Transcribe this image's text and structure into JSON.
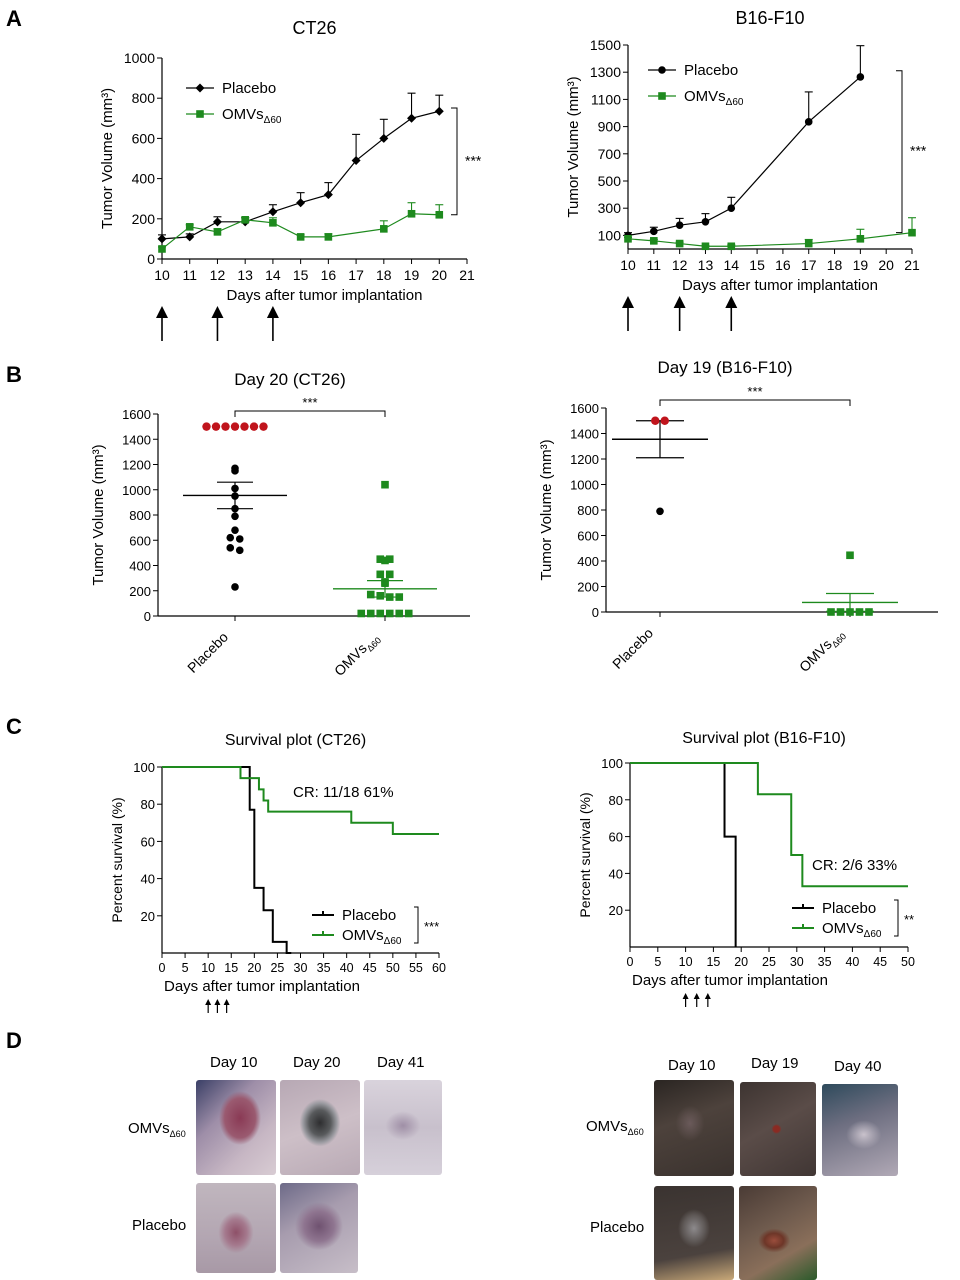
{
  "panel_letters": {
    "a": "A",
    "b": "B",
    "c": "C",
    "d": "D"
  },
  "colors": {
    "placebo": "#000000",
    "omvs": "#1e8a1e",
    "placebo_capped": "#c0141c"
  },
  "chart_data": [
    {
      "id": "A1",
      "type": "line",
      "title": "CT26",
      "xlabel": "Days after tumor implantation",
      "ylabel": "Tumor Volume (mm³)",
      "xlim": [
        10,
        21
      ],
      "ylim": [
        0,
        1000
      ],
      "xticks": [
        10,
        11,
        12,
        13,
        14,
        15,
        16,
        17,
        18,
        19,
        20,
        21
      ],
      "yticks": [
        0,
        200,
        400,
        600,
        800,
        1000
      ],
      "series": [
        {
          "name": "Placebo",
          "marker": "diamond",
          "x": [
            10,
            11,
            12,
            13,
            14,
            15,
            16,
            17,
            18,
            19,
            20
          ],
          "y": [
            100,
            110,
            185,
            185,
            235,
            280,
            320,
            490,
            600,
            700,
            735
          ],
          "err": [
            20,
            15,
            25,
            20,
            35,
            50,
            60,
            130,
            95,
            125,
            80
          ]
        },
        {
          "name": "OMVs",
          "name_subscript": "Δ60",
          "marker": "square",
          "x": [
            10,
            11,
            12,
            13,
            14,
            15,
            16,
            18,
            19,
            20
          ],
          "y": [
            50,
            160,
            135,
            195,
            180,
            110,
            110,
            150,
            225,
            220
          ],
          "err": [
            10,
            10,
            15,
            10,
            25,
            10,
            15,
            40,
            55,
            50
          ]
        }
      ],
      "significance": "***",
      "dosing_days": [
        10,
        12,
        14
      ]
    },
    {
      "id": "A2",
      "type": "line",
      "title": "B16-F10",
      "xlabel": "Days after tumor implantation",
      "ylabel": "Tumor Volume (mm³)",
      "xlim": [
        10,
        21
      ],
      "ylim": [
        0,
        1500
      ],
      "xticks": [
        10,
        11,
        12,
        13,
        14,
        15,
        16,
        17,
        18,
        19,
        20,
        21
      ],
      "yticks": [
        100,
        300,
        500,
        700,
        900,
        1100,
        1300,
        1500
      ],
      "series": [
        {
          "name": "Placebo",
          "marker": "circle",
          "x": [
            10,
            11,
            12,
            13,
            14,
            17,
            19
          ],
          "y": [
            100,
            130,
            175,
            200,
            300,
            935,
            1265
          ],
          "err": [
            20,
            30,
            50,
            60,
            80,
            220,
            230
          ]
        },
        {
          "name": "OMVs",
          "name_subscript": "Δ60",
          "marker": "square",
          "x": [
            10,
            11,
            12,
            13,
            14,
            17,
            19,
            21
          ],
          "y": [
            75,
            60,
            40,
            20,
            20,
            40,
            75,
            120
          ],
          "err": [
            10,
            10,
            10,
            5,
            10,
            30,
            70,
            110
          ]
        }
      ],
      "significance": "***",
      "dosing_days": [
        10,
        12,
        14
      ]
    },
    {
      "id": "B1",
      "type": "scatter",
      "title": "Day 20 (CT26)",
      "ylabel": "Tumor Volume (mm³)",
      "categories": [
        "Placebo",
        "OMVs"
      ],
      "category_subscripts": [
        "",
        "Δ60"
      ],
      "ylim": [
        0,
        1600
      ],
      "yticks": [
        0,
        200,
        400,
        600,
        800,
        1000,
        1200,
        1400,
        1600
      ],
      "groups": [
        {
          "name": "Placebo",
          "marker": "circle",
          "mean": 955,
          "sem": 105,
          "capped": [
            1500,
            1500,
            1500,
            1500,
            1500,
            1500,
            1500
          ],
          "points": [
            1170,
            1150,
            1010,
            950,
            850,
            790,
            680,
            620,
            610,
            540,
            520,
            230
          ]
        },
        {
          "name": "OMVs",
          "marker": "square",
          "mean": 215,
          "sem": 65,
          "points": [
            1040,
            450,
            450,
            440,
            330,
            330,
            270,
            260,
            170,
            160,
            150,
            150,
            20,
            20,
            20,
            20,
            20,
            20
          ]
        }
      ],
      "significance": "***"
    },
    {
      "id": "B2",
      "type": "scatter",
      "title": "Day 19 (B16-F10)",
      "ylabel": "Tumor Volume (mm³)",
      "categories": [
        "Placebo",
        "OMVs"
      ],
      "category_subscripts": [
        "",
        "Δ60"
      ],
      "ylim": [
        0,
        1600
      ],
      "yticks": [
        0,
        200,
        400,
        600,
        800,
        1000,
        1200,
        1400,
        1600
      ],
      "groups": [
        {
          "name": "Placebo",
          "marker": "circle",
          "mean": 1355,
          "sem": 145,
          "capped": [
            1500,
            1500
          ],
          "points": [
            1500,
            1500,
            790
          ]
        },
        {
          "name": "OMVs",
          "marker": "square",
          "mean": 75,
          "sem": 70,
          "points": [
            445,
            0,
            0,
            0,
            0,
            0
          ]
        }
      ],
      "significance": "***"
    },
    {
      "id": "C1",
      "type": "line",
      "subtype": "survival",
      "title": "Survival plot (CT26)",
      "xlabel": "Days after tumor implantation",
      "ylabel": "Percent survival (%)",
      "xlim": [
        0,
        60
      ],
      "ylim": [
        0,
        100
      ],
      "xticks": [
        0,
        5,
        10,
        15,
        20,
        25,
        30,
        35,
        40,
        45,
        50,
        55,
        60
      ],
      "yticks": [
        20,
        40,
        60,
        80,
        100
      ],
      "series": [
        {
          "name": "Placebo",
          "steps": [
            [
              0,
              100
            ],
            [
              19,
              100
            ],
            [
              19,
              77
            ],
            [
              20,
              77
            ],
            [
              20,
              35
            ],
            [
              22,
              35
            ],
            [
              22,
              23
            ],
            [
              24,
              23
            ],
            [
              24,
              6
            ],
            [
              27,
              6
            ],
            [
              27,
              0
            ],
            [
              28,
              0
            ]
          ]
        },
        {
          "name": "OMVs",
          "name_subscript": "Δ60",
          "steps": [
            [
              0,
              100
            ],
            [
              17,
              100
            ],
            [
              17,
              94
            ],
            [
              21,
              94
            ],
            [
              21,
              88
            ],
            [
              22,
              88
            ],
            [
              22,
              82
            ],
            [
              23,
              82
            ],
            [
              23,
              76
            ],
            [
              41,
              76
            ],
            [
              41,
              70
            ],
            [
              50,
              70
            ],
            [
              50,
              64
            ],
            [
              60,
              64
            ]
          ]
        }
      ],
      "annotation": "CR: 11/18   61%",
      "significance": "***",
      "dosing_days": [
        10,
        12,
        14
      ]
    },
    {
      "id": "C2",
      "type": "line",
      "subtype": "survival",
      "title": "Survival plot (B16-F10)",
      "xlabel": "Days after tumor implantation",
      "ylabel": "Percent survival (%)",
      "xlim": [
        0,
        50
      ],
      "ylim": [
        0,
        100
      ],
      "xticks": [
        0,
        5,
        10,
        15,
        20,
        25,
        30,
        35,
        40,
        45,
        50
      ],
      "yticks": [
        20,
        40,
        60,
        80,
        100
      ],
      "series": [
        {
          "name": "Placebo",
          "steps": [
            [
              0,
              100
            ],
            [
              17,
              100
            ],
            [
              17,
              60
            ],
            [
              19,
              60
            ],
            [
              19,
              0
            ]
          ]
        },
        {
          "name": "OMVs",
          "name_subscript": "Δ60",
          "steps": [
            [
              0,
              100
            ],
            [
              23,
              100
            ],
            [
              23,
              83
            ],
            [
              29,
              83
            ],
            [
              29,
              50
            ],
            [
              31,
              50
            ],
            [
              31,
              33
            ],
            [
              50,
              33
            ]
          ]
        }
      ],
      "annotation": "CR: 2/6   33%",
      "significance": "**",
      "dosing_days": [
        10,
        12,
        14
      ]
    }
  ],
  "photos_left": {
    "day_labels": [
      "Day 10",
      "Day 20",
      "Day 41"
    ],
    "row_omvs": "OMVs",
    "row_omvs_sub": "Δ60",
    "row_placebo": "Placebo"
  },
  "photos_right": {
    "day_labels": [
      "Day 10",
      "Day 19",
      "Day 40"
    ],
    "row_omvs": "OMVs",
    "row_omvs_sub": "Δ60",
    "row_placebo": "Placebo"
  }
}
